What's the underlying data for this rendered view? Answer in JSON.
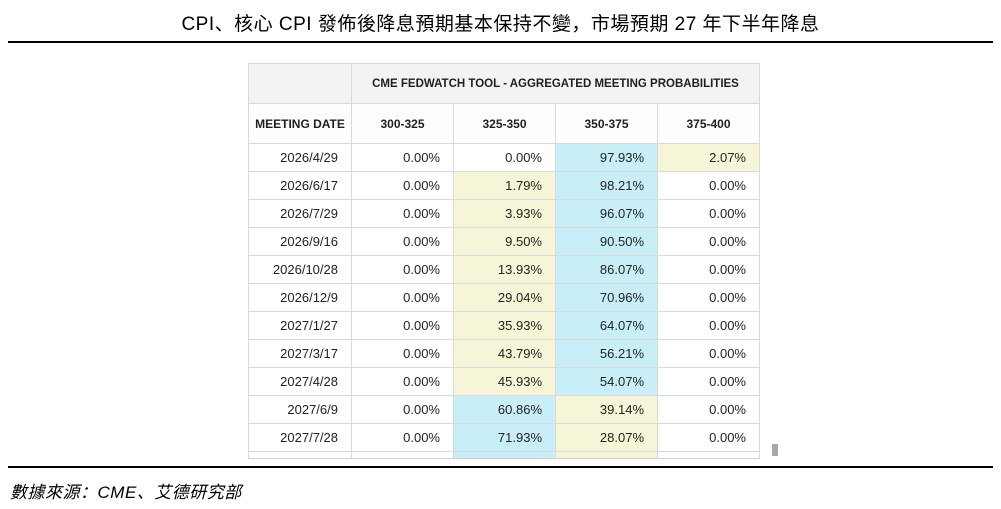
{
  "title": "CPI、核心 CPI 發佈後降息預期基本保持不變，市場預期 27 年下半年降息",
  "source_note": "數據來源：CME、艾德研究部",
  "table": {
    "main_header": "CME FEDWATCH TOOL - AGGREGATED MEETING PROBABILITIES",
    "columns": [
      "MEETING DATE",
      "300-325",
      "325-350",
      "350-375",
      "375-400"
    ],
    "rows": [
      {
        "date": "2026/4/29",
        "values": [
          "0.00%",
          "0.00%",
          "97.93%",
          "2.07%"
        ],
        "highlights": [
          "none",
          "none",
          "cyan",
          "yellow"
        ]
      },
      {
        "date": "2026/6/17",
        "values": [
          "0.00%",
          "1.79%",
          "98.21%",
          "0.00%"
        ],
        "highlights": [
          "none",
          "yellow",
          "cyan",
          "none"
        ]
      },
      {
        "date": "2026/7/29",
        "values": [
          "0.00%",
          "3.93%",
          "96.07%",
          "0.00%"
        ],
        "highlights": [
          "none",
          "yellow",
          "cyan",
          "none"
        ]
      },
      {
        "date": "2026/9/16",
        "values": [
          "0.00%",
          "9.50%",
          "90.50%",
          "0.00%"
        ],
        "highlights": [
          "none",
          "yellow",
          "cyan",
          "none"
        ]
      },
      {
        "date": "2026/10/28",
        "values": [
          "0.00%",
          "13.93%",
          "86.07%",
          "0.00%"
        ],
        "highlights": [
          "none",
          "yellow",
          "cyan",
          "none"
        ]
      },
      {
        "date": "2026/12/9",
        "values": [
          "0.00%",
          "29.04%",
          "70.96%",
          "0.00%"
        ],
        "highlights": [
          "none",
          "yellow",
          "cyan",
          "none"
        ]
      },
      {
        "date": "2027/1/27",
        "values": [
          "0.00%",
          "35.93%",
          "64.07%",
          "0.00%"
        ],
        "highlights": [
          "none",
          "yellow",
          "cyan",
          "none"
        ]
      },
      {
        "date": "2027/3/17",
        "values": [
          "0.00%",
          "43.79%",
          "56.21%",
          "0.00%"
        ],
        "highlights": [
          "none",
          "yellow",
          "cyan",
          "none"
        ]
      },
      {
        "date": "2027/4/28",
        "values": [
          "0.00%",
          "45.93%",
          "54.07%",
          "0.00%"
        ],
        "highlights": [
          "none",
          "yellow",
          "cyan",
          "none"
        ]
      },
      {
        "date": "2027/6/9",
        "values": [
          "0.00%",
          "60.86%",
          "39.14%",
          "0.00%"
        ],
        "highlights": [
          "none",
          "cyan",
          "yellow",
          "none"
        ]
      },
      {
        "date": "2027/7/28",
        "values": [
          "0.00%",
          "71.93%",
          "28.07%",
          "0.00%"
        ],
        "highlights": [
          "none",
          "cyan",
          "yellow",
          "none"
        ]
      }
    ],
    "partial_row_highlights": [
      "none",
      "none",
      "cyan",
      "yellow",
      "none"
    ]
  },
  "colors": {
    "highlight_cyan": "#c8eff7",
    "highlight_yellow": "#f6f5d7",
    "header_background": "#f3f3f3",
    "grid_border": "#d9d9d9",
    "rule_black": "#000000"
  },
  "chart_data": {
    "type": "table",
    "title": "CPI、核心 CPI 發佈後降息預期基本保持不變，市場預期 27 年下半年降息",
    "table_title": "CME FEDWATCH TOOL - AGGREGATED MEETING PROBABILITIES",
    "source": "數據來源：CME、艾德研究部",
    "columns": [
      "MEETING DATE",
      "300-325",
      "325-350",
      "350-375",
      "375-400"
    ],
    "units": "percent probability",
    "rows": [
      [
        "2026/4/29",
        0.0,
        0.0,
        97.93,
        2.07
      ],
      [
        "2026/6/17",
        0.0,
        1.79,
        98.21,
        0.0
      ],
      [
        "2026/7/29",
        0.0,
        3.93,
        96.07,
        0.0
      ],
      [
        "2026/9/16",
        0.0,
        9.5,
        90.5,
        0.0
      ],
      [
        "2026/10/28",
        0.0,
        13.93,
        86.07,
        0.0
      ],
      [
        "2026/12/9",
        0.0,
        29.04,
        70.96,
        0.0
      ],
      [
        "2027/1/27",
        0.0,
        35.93,
        64.07,
        0.0
      ],
      [
        "2027/3/17",
        0.0,
        43.79,
        56.21,
        0.0
      ],
      [
        "2027/4/28",
        0.0,
        45.93,
        54.07,
        0.0
      ],
      [
        "2027/6/9",
        0.0,
        60.86,
        39.14,
        0.0
      ],
      [
        "2027/7/28",
        0.0,
        71.93,
        28.07,
        0.0
      ]
    ],
    "notes": "cyan highlight = highest probability rate band per meeting; pale-yellow highlight = second highest"
  }
}
